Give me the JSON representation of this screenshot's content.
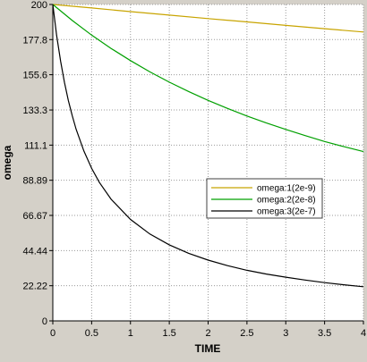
{
  "colors": {
    "background": "#d4d0c8",
    "plot_background": "#ffffff",
    "grid": "#9a9a9a",
    "axis": "#000000"
  },
  "chart_data": {
    "type": "line",
    "title": "",
    "xlabel": "TIME",
    "ylabel": "omega",
    "xlim": [
      0,
      4
    ],
    "ylim": [
      0,
      200
    ],
    "x_ticks": [
      0,
      0.5,
      1,
      1.5,
      2,
      2.5,
      3,
      3.5,
      4
    ],
    "x_tick_labels": [
      "0",
      "0.5",
      "1",
      "1.5",
      "2",
      "2.5",
      "3",
      "3.5",
      "4"
    ],
    "y_ticks": [
      0,
      22.22,
      44.44,
      66.67,
      88.89,
      111.1,
      133.3,
      155.6,
      177.8,
      200
    ],
    "y_tick_labels": [
      "0",
      "22.22",
      "44.44",
      "66.67",
      "88.89",
      "111.1",
      "133.3",
      "155.6",
      "177.8",
      "200"
    ],
    "grid": true,
    "legend_position": "center-right",
    "series": [
      {
        "name": "omega:1(2e-9)",
        "color": "#c8a400",
        "x": [
          0,
          0.5,
          1,
          1.5,
          2,
          2.5,
          3,
          3.5,
          4
        ],
        "values": [
          200,
          197.8,
          195.5,
          193.3,
          191.1,
          189.0,
          186.8,
          184.7,
          182.6
        ]
      },
      {
        "name": "omega:2(2e-8)",
        "color": "#00a000",
        "x": [
          0,
          0.25,
          0.5,
          0.75,
          1,
          1.25,
          1.5,
          1.75,
          2,
          2.25,
          2.5,
          2.75,
          3,
          3.25,
          3.5,
          3.75,
          4
        ],
        "values": [
          200,
          189.9,
          180.6,
          172.2,
          164.5,
          157.4,
          150.9,
          145.0,
          139.4,
          134.3,
          129.5,
          125.1,
          121.0,
          117.1,
          113.4,
          110.1,
          107.0
        ]
      },
      {
        "name": "omega:3(2e-7)",
        "color": "#000000",
        "x": [
          0,
          0.05,
          0.1,
          0.15,
          0.2,
          0.25,
          0.3,
          0.4,
          0.5,
          0.6,
          0.75,
          1,
          1.25,
          1.5,
          1.75,
          2,
          2.25,
          2.5,
          2.75,
          3,
          3.25,
          3.5,
          3.75,
          4
        ],
        "values": [
          200,
          180.3,
          164.2,
          150.8,
          139.4,
          129.7,
          121.2,
          107.4,
          96.4,
          87.5,
          76.9,
          64.1,
          54.9,
          48.1,
          42.7,
          38.4,
          34.9,
          32.0,
          29.6,
          27.6,
          25.8,
          24.2,
          22.8,
          21.6
        ]
      }
    ]
  }
}
